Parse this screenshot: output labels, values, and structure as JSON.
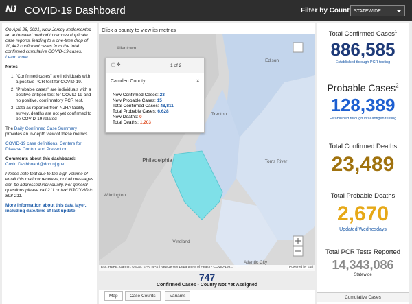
{
  "header": {
    "logo": "NJ",
    "title": "COVID-19 Dashboard",
    "filter_label": "Filter by County:",
    "filter_value": "STATEWIDE"
  },
  "sidebar": {
    "notice": "On April 26, 2021, New Jersey implemented an automated method to remove duplicate case reports, leading to a one-time drop of 10,442 confirmed cases from the total confirmed cumulative COVID-19 cases.",
    "learn_more": "Learn more.",
    "notes_title": "Notes",
    "notes": [
      "\"Confirmed cases\" are individuals with a positive PCR test for COVID-19.",
      "\"Probable cases\" are individuals with a positive antigen test for COVID-19 and no positive, confirmatory PCR test.",
      "Data as reported from NJHA facility survey, deaths are not yet confirmed to be COVID-19 related"
    ],
    "summary_before": "The",
    "summary_link": "Daily Confirmed Case Summary",
    "summary_after": "provides an in-depth view of these metrics.",
    "definitions_link": "COVID-19 case definitions, Centers for Disease Control and Prevention",
    "comments_label": "Comments about this dashboard:",
    "email": "Covid.Dashboard@doh.nj.gov",
    "disclaimer": "Please note that due to the high volume of email this mailbox receives, not all messages can be addressed individually. For general questions please call 211 or text NJCOVID to 898-211.",
    "more_info": "More information about this data layer, including date/time of last update"
  },
  "map": {
    "instruction": "Click a county to view its metrics",
    "places": [
      "Allentown",
      "Edison",
      "Trenton",
      "Philadelphia",
      "Toms River",
      "Wilmington",
      "Vineland",
      "Atlantic City"
    ],
    "popup": {
      "pager": "1 of 2",
      "title": "Camden County",
      "rows": [
        {
          "label": "New Confirmed Cases:",
          "value": "23"
        },
        {
          "label": "New Probable Cases:",
          "value": "15"
        },
        {
          "label": "Total Confirmed Cases:",
          "value": "48,811"
        },
        {
          "label": "Total Probable Cases:",
          "value": "6,628"
        },
        {
          "label": "New Deaths:",
          "value": "0"
        },
        {
          "label": "Total Deaths:",
          "value": "1,203"
        }
      ]
    },
    "attribution": "Esri, HERE, Garmin, USGS, EPA, NPS | New Jersey Department of Health - COVID-19 r...",
    "powered": "Powered by Esri",
    "unassigned_value": "747",
    "unassigned_label": "Confirmed Cases - County Not Yet Assigned",
    "tabs": [
      "Map",
      "Case Counts",
      "Variants"
    ]
  },
  "metrics": [
    {
      "title": "Total Confirmed Cases",
      "sup": "1",
      "value": "886,585",
      "note": "Established through PCR testing"
    },
    {
      "title": "Probable Cases",
      "sup": "2",
      "value": "128,389",
      "note": "Established through viral antigen testing"
    },
    {
      "title": "Total Confirmed Deaths",
      "value": "23,489"
    },
    {
      "title": "Total Probable Deaths",
      "value": "2,670",
      "note": "Updated Wednesdays"
    },
    {
      "title": "Total PCR Tests Reported",
      "value": "14,343,086",
      "note": "Statewide"
    }
  ],
  "metrics_footer": "Cumulative Cases"
}
